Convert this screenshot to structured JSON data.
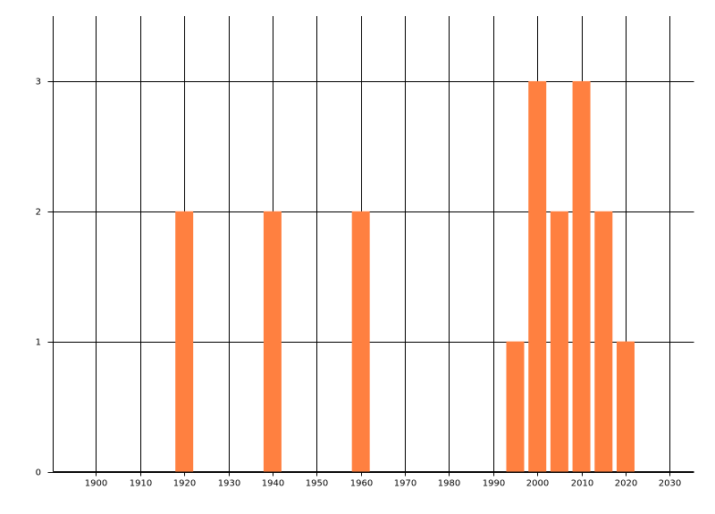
{
  "chart_data": {
    "type": "bar",
    "x": [
      1920,
      1940,
      1960,
      1995,
      2000,
      2005,
      2010,
      2015,
      2020
    ],
    "values": [
      2,
      2,
      2,
      1,
      3,
      2,
      3,
      2,
      1
    ],
    "color": "#ff8040",
    "xlim": [
      1890.3,
      2035.5
    ],
    "xticks": [
      1900,
      1910,
      1920,
      1930,
      1940,
      1950,
      1960,
      1970,
      1980,
      1990,
      2000,
      2010,
      2020,
      2030
    ],
    "ylim": [
      0,
      3.5
    ],
    "yticks": [
      0,
      1,
      2,
      3
    ],
    "grid": true
  }
}
